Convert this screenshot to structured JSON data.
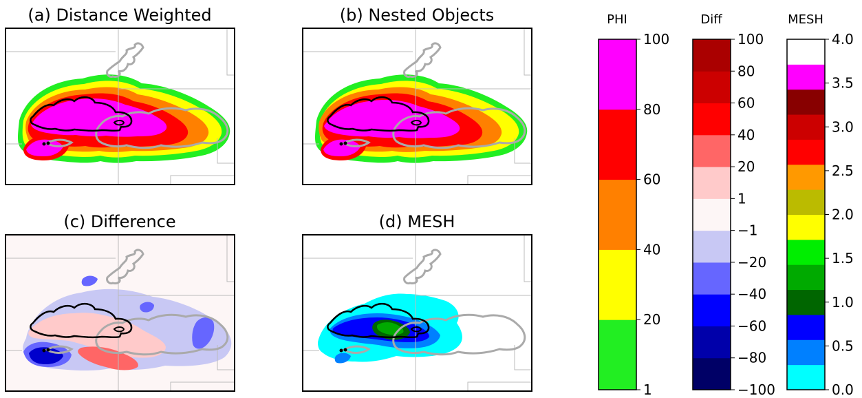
{
  "panels": [
    {
      "id": "a",
      "title": "(a) Distance Weighted",
      "field": "phi_dw"
    },
    {
      "id": "b",
      "title": "(b) Nested Objects",
      "field": "phi_no"
    },
    {
      "id": "c",
      "title": "(c) Difference",
      "field": "diff"
    },
    {
      "id": "d",
      "title": "(d) MESH",
      "field": "mesh"
    }
  ],
  "colorbars": [
    {
      "id": "phi",
      "title": "PHI",
      "levels": [
        1,
        20,
        40,
        60,
        80,
        100
      ],
      "colors": [
        "#22ee22",
        "#ffff00",
        "#ff8000",
        "#ff0000",
        "#ff00ff"
      ],
      "tick_labels": [
        "1",
        "20",
        "40",
        "60",
        "80",
        "100"
      ]
    },
    {
      "id": "diff",
      "title": "Diff",
      "levels": [
        -100,
        -80,
        -60,
        -40,
        -20,
        -1,
        1,
        20,
        40,
        60,
        80,
        100
      ],
      "colors": [
        "#000066",
        "#0000aa",
        "#0000ff",
        "#6666ff",
        "#c8c8f4",
        "#fdf6f6",
        "#ffcaca",
        "#ff6666",
        "#ff0000",
        "#cc0000",
        "#aa0000"
      ],
      "tick_labels": [
        "−100",
        "−80",
        "−60",
        "−40",
        "−20",
        "−1",
        "1",
        "20",
        "40",
        "60",
        "80",
        "100"
      ]
    },
    {
      "id": "mesh",
      "title": "MESH",
      "levels": [
        0.0,
        0.5,
        0.75,
        1.0,
        1.25,
        1.5,
        1.75,
        2.0,
        2.25,
        2.5,
        2.75,
        3.0,
        3.25,
        3.5,
        4.0
      ],
      "colors": [
        "#00ffff",
        "#0080ff",
        "#0000ff",
        "#006600",
        "#00aa00",
        "#00ee00",
        "#ffff00",
        "#bbbb00",
        "#ff9900",
        "#ff0000",
        "#cc0000",
        "#880000",
        "#ff00ff",
        "#ffffff"
      ],
      "tick_labels": [
        "0.0",
        "0.5",
        "1.0",
        "1.5",
        "2.0",
        "2.5",
        "3.0",
        "3.5",
        "4.0"
      ],
      "tick_values": [
        0.0,
        0.5,
        1.0,
        1.5,
        2.0,
        2.5,
        3.0,
        3.5,
        4.0
      ]
    }
  ],
  "chart_data": [
    {
      "type": "heatmap",
      "title": "(a) Distance Weighted",
      "variable": "PHI",
      "range": [
        1,
        100
      ]
    },
    {
      "type": "heatmap",
      "title": "(b) Nested Objects",
      "variable": "PHI",
      "range": [
        1,
        100
      ]
    },
    {
      "type": "heatmap",
      "title": "(c) Difference",
      "variable": "Diff",
      "range": [
        -100,
        100
      ]
    },
    {
      "type": "heatmap",
      "title": "(d) MESH",
      "variable": "MESH",
      "range": [
        0.0,
        4.0
      ]
    }
  ]
}
